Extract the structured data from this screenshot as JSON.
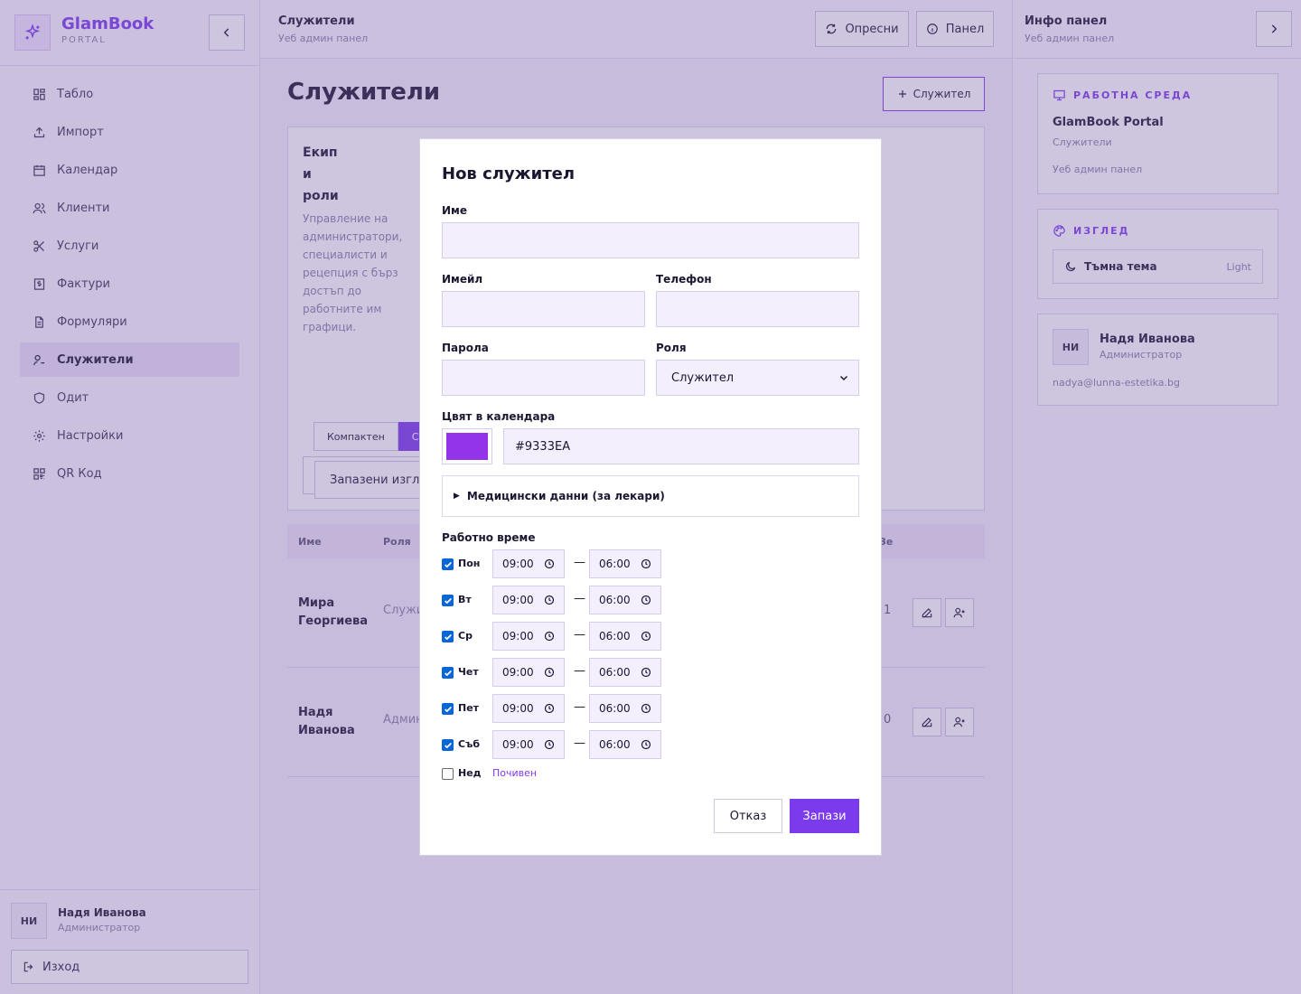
{
  "brand": {
    "name": "GlamBook",
    "sub": "PORTAL"
  },
  "nav": [
    {
      "label": "Табло",
      "icon": "dashboard-icon"
    },
    {
      "label": "Импорт",
      "icon": "upload-icon"
    },
    {
      "label": "Календар",
      "icon": "calendar-icon"
    },
    {
      "label": "Клиенти",
      "icon": "users-icon"
    },
    {
      "label": "Услуги",
      "icon": "scissors-icon"
    },
    {
      "label": "Фактури",
      "icon": "invoice-icon"
    },
    {
      "label": "Формуляри",
      "icon": "form-icon"
    },
    {
      "label": "Служители",
      "icon": "staff-icon",
      "active": true
    },
    {
      "label": "Одит",
      "icon": "shield-icon"
    },
    {
      "label": "Настройки",
      "icon": "gear-icon"
    },
    {
      "label": "QR Код",
      "icon": "qr-icon"
    }
  ],
  "user": {
    "initials": "НИ",
    "name": "Надя Иванова",
    "role": "Администратор",
    "logout": "Изход"
  },
  "topbar": {
    "title": "Служители",
    "sub": "Уеб админ панел",
    "refresh": "Опресни",
    "panel": "Панел"
  },
  "page": {
    "title": "Служители",
    "add": "Служител"
  },
  "team": {
    "title": "Екип и роли",
    "desc": "Управление на администратори, специалисти и рецепция с бърз достъп до работните им графици.",
    "seg_compact": "Компактен",
    "seg_standard": "Ст",
    "saved_views": "Запазени изгледи"
  },
  "table": {
    "headers": {
      "name": "Име",
      "role": "Роля",
      "count": "Зе"
    },
    "rows": [
      {
        "name": "Мира Георгиева",
        "role": "Служи",
        "count": "1"
      },
      {
        "name": "Надя Иванова",
        "role": "Админ",
        "count": "0"
      }
    ]
  },
  "rpanel": {
    "title": "Инфо панел",
    "sub": "Уеб админ панел",
    "workspace_label": "РАБОТНА СРЕДА",
    "workspace_name": "GlamBook Portal",
    "workspace_page": "Служители",
    "workspace_ctx": "Уеб админ панел",
    "look_label": "ИЗГЛЕД",
    "theme_label": "Тъмна тема",
    "theme_value": "Light",
    "profile_initials": "НИ",
    "profile_name": "Надя Иванова",
    "profile_role": "Администратор",
    "profile_email": "nadya@lunna-estetika.bg"
  },
  "modal": {
    "title": "Нов служител",
    "name_label": "Име",
    "name_value": "",
    "email_label": "Имейл",
    "email_value": "",
    "phone_label": "Телефон",
    "phone_value": "",
    "password_label": "Парола",
    "password_value": "",
    "role_label": "Роля",
    "role_value": "Служител",
    "color_label": "Цвят в календара",
    "color_value": "#9333EA",
    "medical_label": "Медицински данни (за лекари)",
    "hours_label": "Работно време",
    "days": [
      {
        "name": "Пон",
        "checked": true,
        "from": "09:00",
        "to": "06:00"
      },
      {
        "name": "Вт",
        "checked": true,
        "from": "09:00",
        "to": "06:00"
      },
      {
        "name": "Ср",
        "checked": true,
        "from": "09:00",
        "to": "06:00"
      },
      {
        "name": "Чет",
        "checked": true,
        "from": "09:00",
        "to": "06:00"
      },
      {
        "name": "Пет",
        "checked": true,
        "from": "09:00",
        "to": "06:00"
      },
      {
        "name": "Съб",
        "checked": true,
        "from": "09:00",
        "to": "06:00"
      }
    ],
    "sunday": {
      "name": "Нед",
      "checked": false,
      "off_label": "Почивен"
    },
    "cancel": "Отказ",
    "save": "Запази"
  },
  "colors": {
    "accent": "#7c3aed",
    "swatch": "#9333EA",
    "checkbox": "#0a66d8"
  }
}
